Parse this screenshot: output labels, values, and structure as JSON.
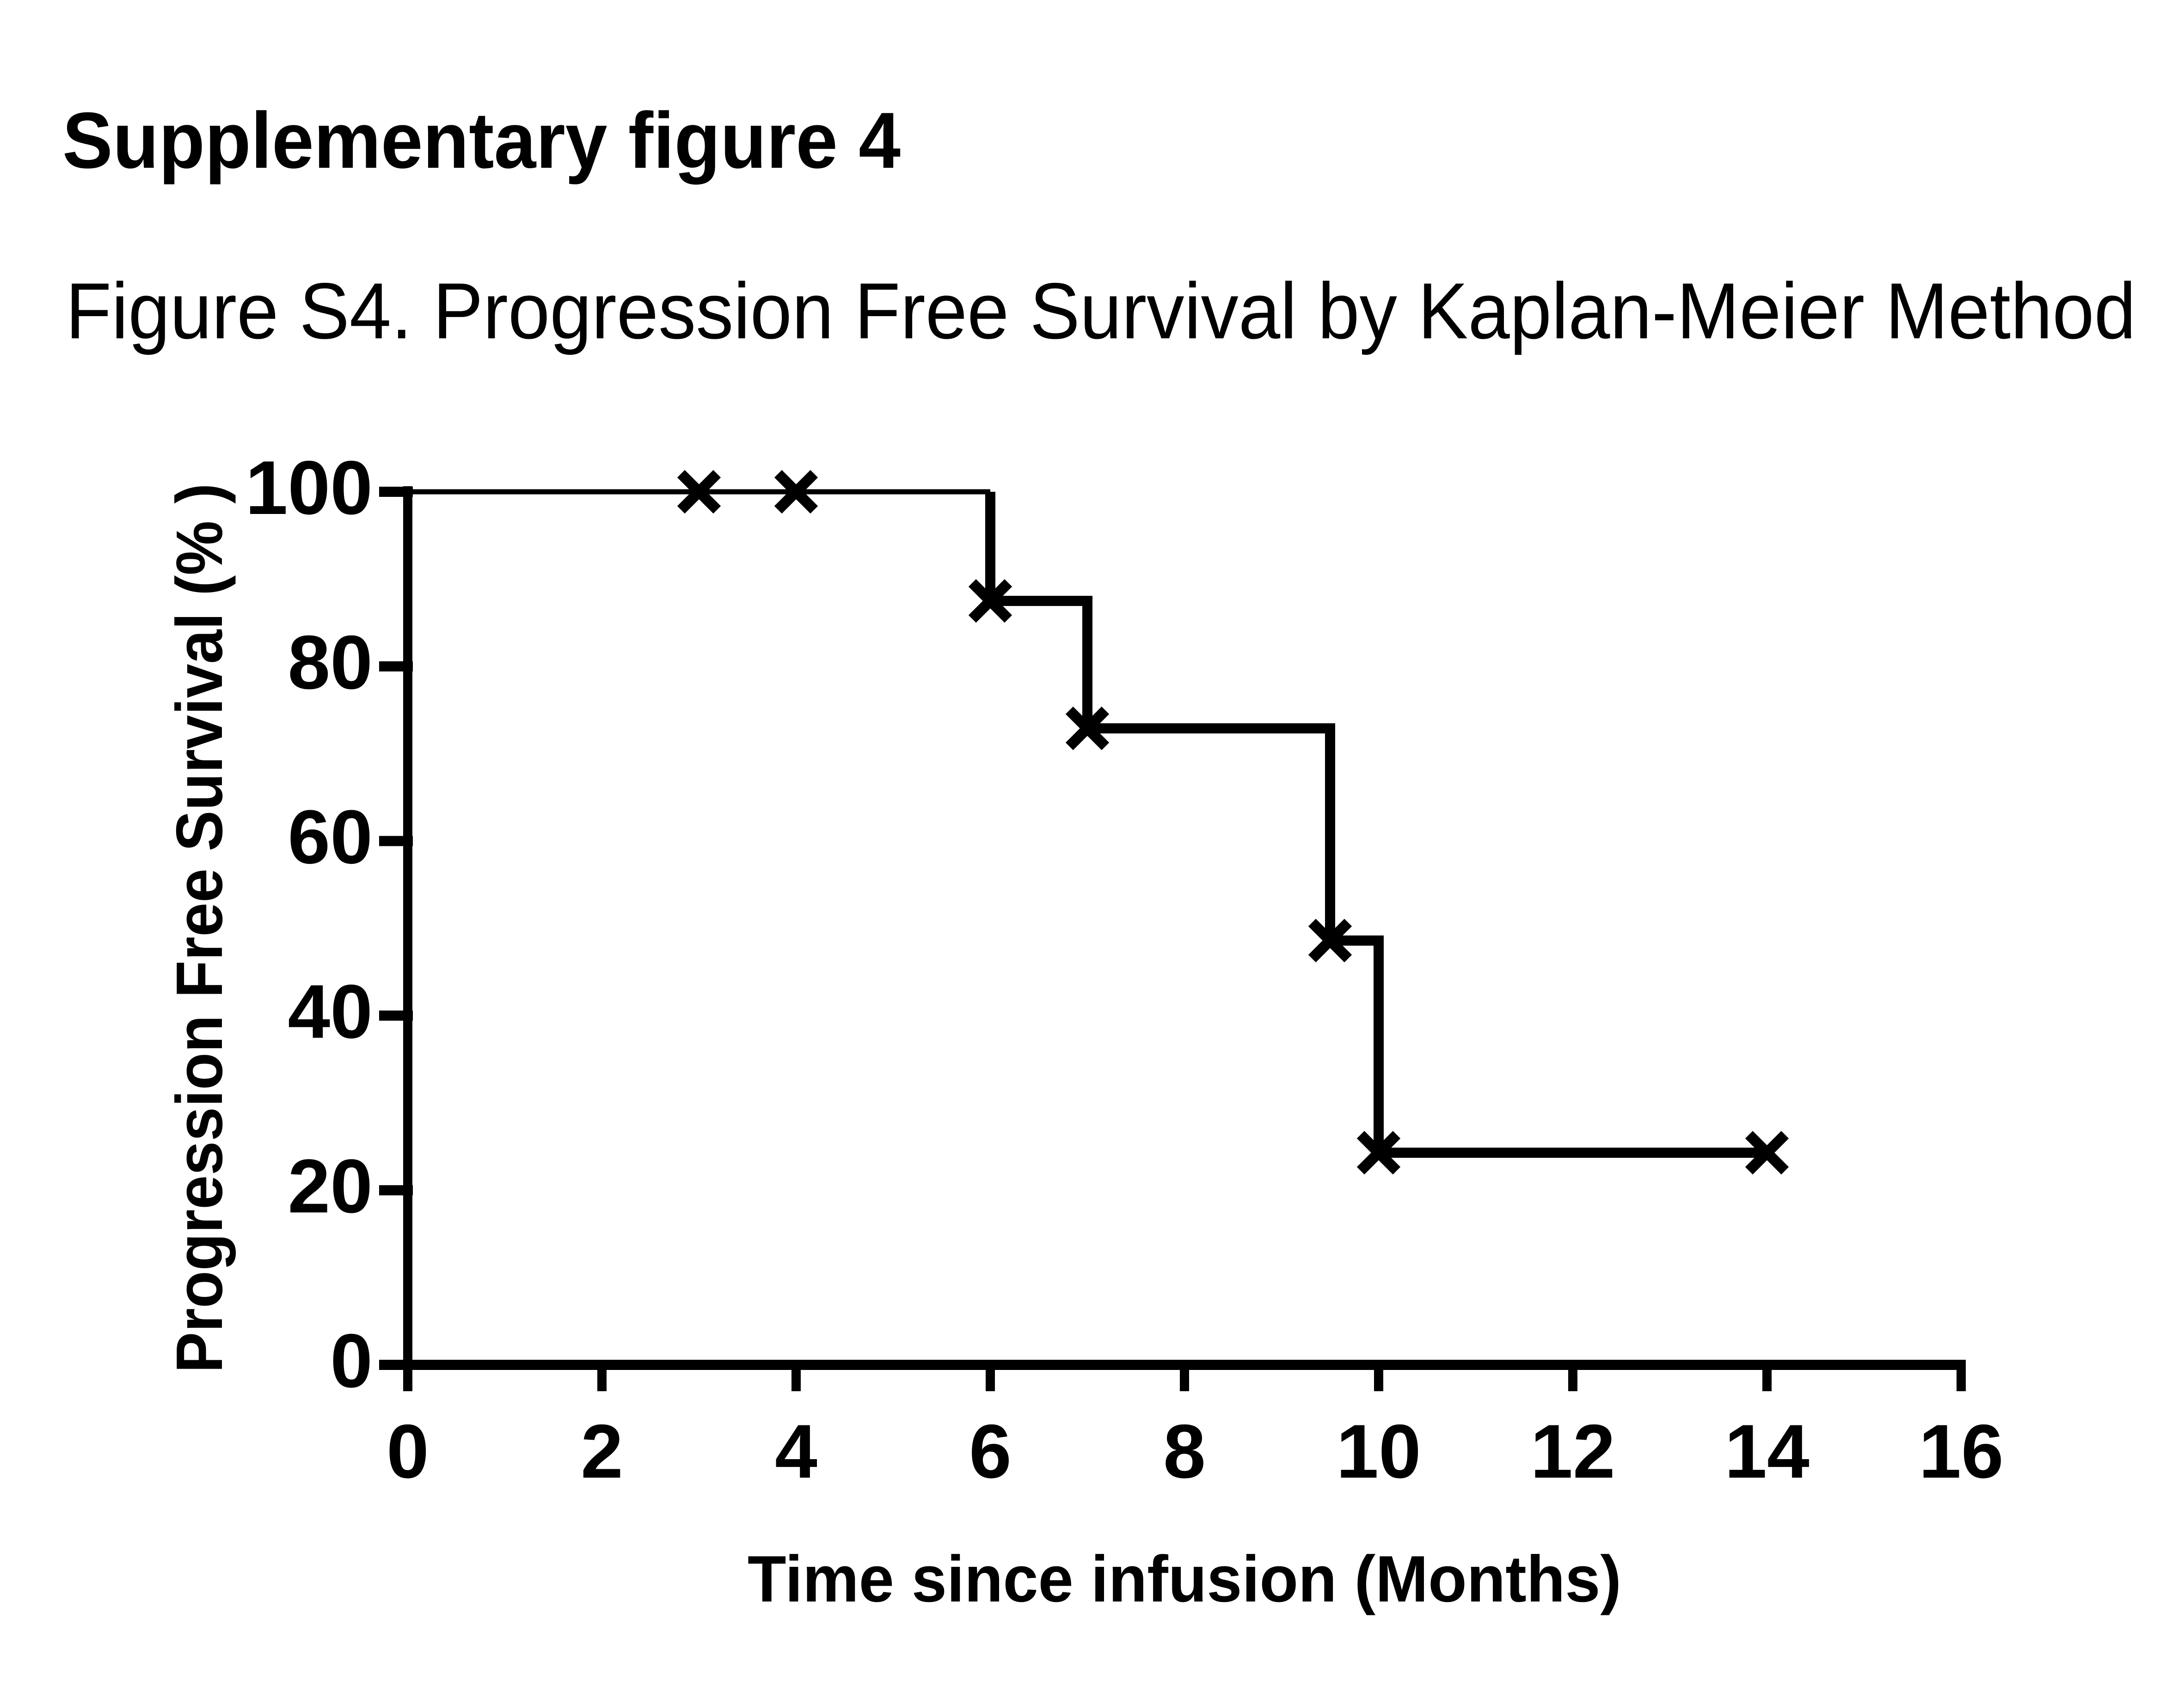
{
  "figure": {
    "title": "Supplementary figure 4",
    "caption": "Figure S4. Progression Free Survival by Kaplan-Meier Method"
  },
  "chart_data": {
    "type": "line",
    "subtype": "kaplan-meier-step-curve",
    "title": "Supplementary figure 4",
    "caption": "Figure S4. Progression Free Survival by Kaplan-Meier Method",
    "xlabel": "Time since infusion (Months)",
    "ylabel": "Progression Free Survival (% )",
    "xlim": [
      0,
      16
    ],
    "ylim": [
      0,
      100
    ],
    "x_ticks": [
      0,
      2,
      4,
      6,
      8,
      10,
      12,
      14,
      16
    ],
    "y_ticks": [
      0,
      20,
      40,
      60,
      80,
      100
    ],
    "grid": false,
    "legend": false,
    "line_color": "#000000",
    "marker_glyph": "x-cross",
    "series": [
      {
        "name": "Progression Free Survival",
        "step_points": [
          [
            0,
            100
          ],
          [
            6,
            100
          ],
          [
            6,
            87.5
          ],
          [
            7,
            87.5
          ],
          [
            7,
            72.9
          ],
          [
            9.5,
            72.9
          ],
          [
            9.5,
            48.6
          ],
          [
            10,
            48.6
          ],
          [
            10,
            24.3
          ],
          [
            14,
            24.3
          ]
        ],
        "drop_times": [
          6,
          7,
          9.5,
          10
        ],
        "survival_levels": [
          100,
          87.5,
          72.9,
          48.6,
          24.3
        ],
        "markers": [
          [
            3,
            100
          ],
          [
            4,
            100
          ],
          [
            6,
            87.5
          ],
          [
            7,
            72.9
          ],
          [
            9.5,
            48.6
          ],
          [
            10,
            24.3
          ],
          [
            14,
            24.3
          ]
        ],
        "censored_times": [
          3,
          4,
          14
        ],
        "end_time": 14
      }
    ]
  }
}
